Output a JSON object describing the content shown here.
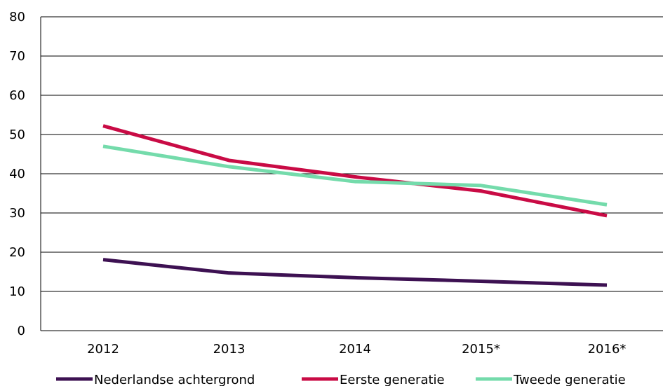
{
  "chart_data": {
    "type": "line",
    "title": "",
    "xlabel": "",
    "ylabel": "",
    "categories": [
      "2012",
      "2013",
      "2014",
      "2015*",
      "2016*"
    ],
    "ylim": [
      0,
      80
    ],
    "yticks": [
      0,
      10,
      20,
      30,
      40,
      50,
      60,
      70,
      80
    ],
    "grid": "horizontal",
    "legend_position": "bottom",
    "series": [
      {
        "name": "Nederlandse achtergrond",
        "color": "#3d1152",
        "values": [
          18.1,
          14.7,
          13.5,
          12.6,
          11.6
        ]
      },
      {
        "name": "Eerste generatie",
        "color": "#c90b45",
        "values": [
          52.2,
          43.4,
          39.2,
          35.6,
          29.3
        ]
      },
      {
        "name": "Tweede generatie",
        "color": "#74dbab",
        "values": [
          47.0,
          41.8,
          38.0,
          37.0,
          32.1
        ]
      }
    ]
  }
}
